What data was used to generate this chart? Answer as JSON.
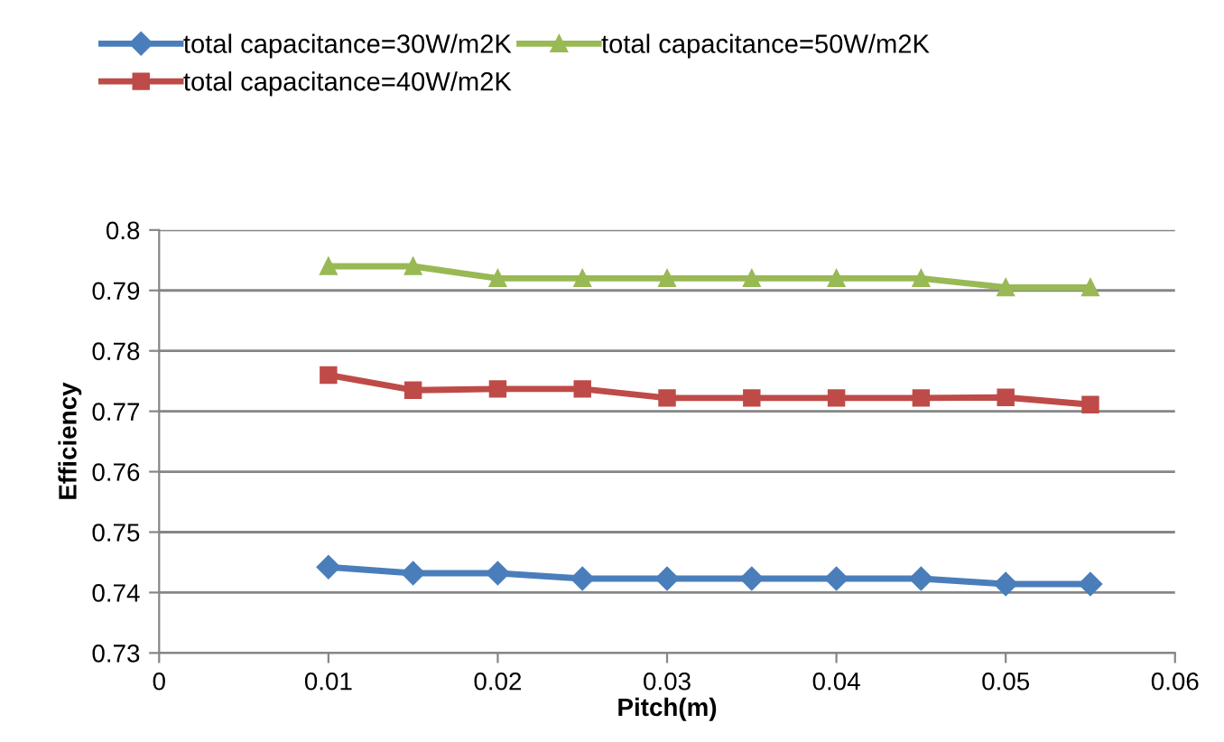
{
  "chart_data": {
    "type": "line",
    "xlabel": "Pitch(m)",
    "ylabel": "Efficiency",
    "x": [
      0.01,
      0.015,
      0.02,
      0.025,
      0.03,
      0.035,
      0.04,
      0.045,
      0.05,
      0.055
    ],
    "series": [
      {
        "name": "total capacitance=30W/m2K",
        "color": "#4a7ebb",
        "marker": "diamond",
        "values": [
          0.7442,
          0.7432,
          0.7432,
          0.7423,
          0.7423,
          0.7423,
          0.7423,
          0.7423,
          0.7414,
          0.7414
        ]
      },
      {
        "name": "total capacitance=40W/m2K",
        "color": "#be4b48",
        "marker": "square",
        "values": [
          0.776,
          0.7735,
          0.7737,
          0.7737,
          0.7722,
          0.7722,
          0.7722,
          0.7722,
          0.7723,
          0.7711
        ]
      },
      {
        "name": "total capacitance=50W/m2K",
        "color": "#98b954",
        "marker": "triangle",
        "values": [
          0.794,
          0.794,
          0.792,
          0.792,
          0.792,
          0.792,
          0.792,
          0.792,
          0.7905,
          0.7905
        ]
      }
    ],
    "xlim": [
      0,
      0.06
    ],
    "xticks": [
      0,
      0.01,
      0.02,
      0.03,
      0.04,
      0.05,
      0.06
    ],
    "ylim": [
      0.73,
      0.8
    ],
    "yticks": [
      0.73,
      0.74,
      0.75,
      0.76,
      0.77,
      0.78,
      0.79,
      0.8
    ],
    "grid": "y",
    "legend": "top",
    "line_style": "solid"
  }
}
